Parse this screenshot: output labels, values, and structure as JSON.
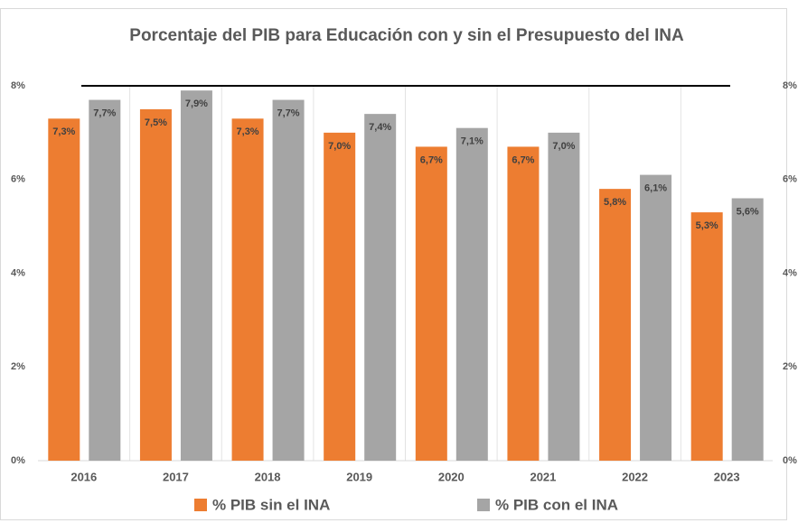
{
  "chart_data": {
    "type": "bar",
    "title": "Porcentaje del PIB para Educación con y sin el Presupuesto del INA",
    "categories": [
      "2016",
      "2017",
      "2018",
      "2019",
      "2020",
      "2021",
      "2022",
      "2023"
    ],
    "series": [
      {
        "name": "% PIB sin el INA",
        "color": "#ed7d31",
        "values": [
          7.3,
          7.5,
          7.3,
          7.0,
          6.7,
          6.7,
          5.8,
          5.3
        ],
        "value_labels": [
          "7,3%",
          "7,5%",
          "7,3%",
          "7,0%",
          "6,7%",
          "6,7%",
          "5,8%",
          "5,3%"
        ]
      },
      {
        "name": "% PIB con el INA",
        "color": "#a5a5a5",
        "values": [
          7.7,
          7.9,
          7.7,
          7.4,
          7.1,
          7.0,
          6.1,
          5.6
        ],
        "value_labels": [
          "7,7%",
          "7,9%",
          "7,7%",
          "7,4%",
          "7,1%",
          "7,0%",
          "6,1%",
          "5,6%"
        ]
      }
    ],
    "ylim": [
      0,
      8
    ],
    "yticks": [
      {
        "value": 0,
        "label": "0%"
      },
      {
        "value": 2,
        "label": "2%"
      },
      {
        "value": 4,
        "label": "4%"
      },
      {
        "value": 6,
        "label": "6%"
      },
      {
        "value": 8,
        "label": "8%"
      }
    ],
    "y2lim": [
      0,
      8
    ],
    "y2ticks": [
      {
        "value": 0,
        "label": "0%"
      },
      {
        "value": 2,
        "label": "2%"
      },
      {
        "value": 4,
        "label": "4%"
      },
      {
        "value": 6,
        "label": "6%"
      },
      {
        "value": 8,
        "label": "8%"
      }
    ],
    "grid": false,
    "legend": "bottom"
  }
}
